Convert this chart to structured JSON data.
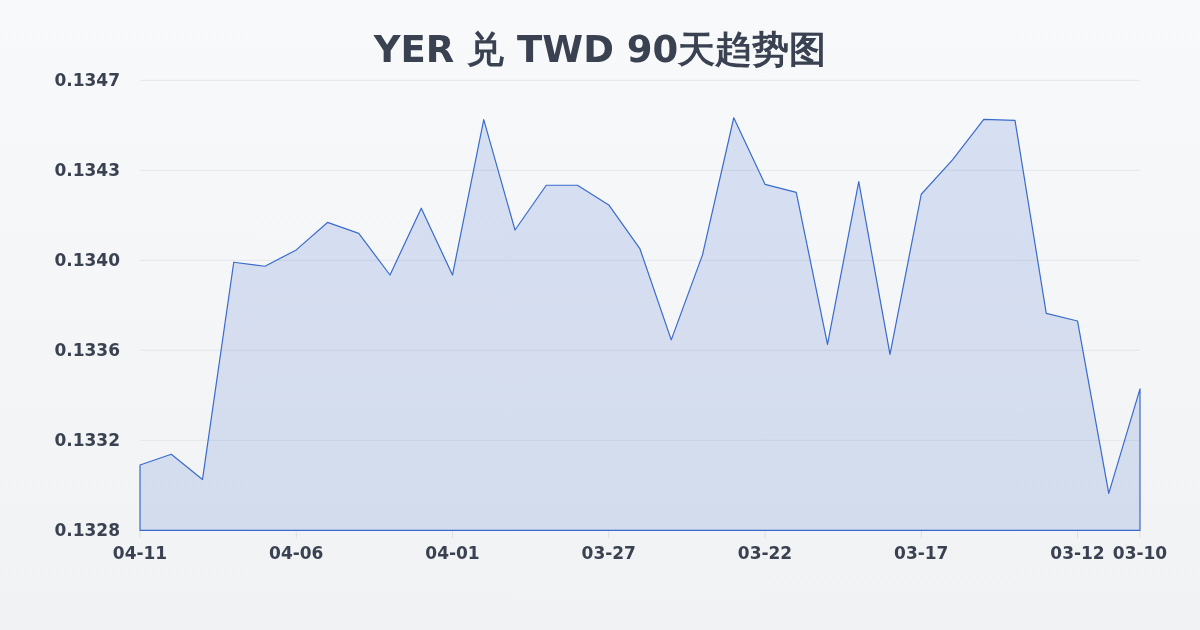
{
  "chart_data": {
    "type": "area",
    "title": "YER 兑 TWD 90天趋势图",
    "categories": [
      "04-11",
      null,
      null,
      null,
      null,
      "04-06",
      null,
      null,
      null,
      null,
      "04-01",
      null,
      null,
      null,
      null,
      "03-27",
      null,
      null,
      null,
      null,
      "03-22",
      null,
      null,
      null,
      null,
      "03-17",
      null,
      null,
      null,
      null,
      "03-12",
      null,
      "03-10"
    ],
    "series": [
      {
        "color": "#3a6bcc",
        "values": [
          0.133096,
          0.133141,
          0.133035,
          0.133952,
          0.133935,
          0.134004,
          0.13412,
          0.134074,
          0.133898,
          0.13418,
          0.133898,
          0.134554,
          0.134088,
          0.134277,
          0.134277,
          0.134194,
          0.134008,
          0.133624,
          0.133983,
          0.134562,
          0.134281,
          0.134247,
          0.133605,
          0.134292,
          0.133563,
          0.134239,
          0.134384,
          0.134555,
          0.134551,
          0.133736,
          0.133704,
          0.132976,
          0.133417
        ]
      }
    ],
    "ylim": [
      0.13282,
      0.13472
    ],
    "yticks": [
      {
        "value": 0.13282,
        "label": "0.1328"
      },
      0.1332,
      {
        "value": 0.13358,
        "label": "0.1336"
      },
      {
        "value": 0.13396,
        "label": "0.1340"
      },
      {
        "value": 0.13434,
        "label": "0.1343"
      },
      {
        "value": 0.13472,
        "label": "0.1347"
      }
    ],
    "grid": "y",
    "line_style": "solid"
  }
}
